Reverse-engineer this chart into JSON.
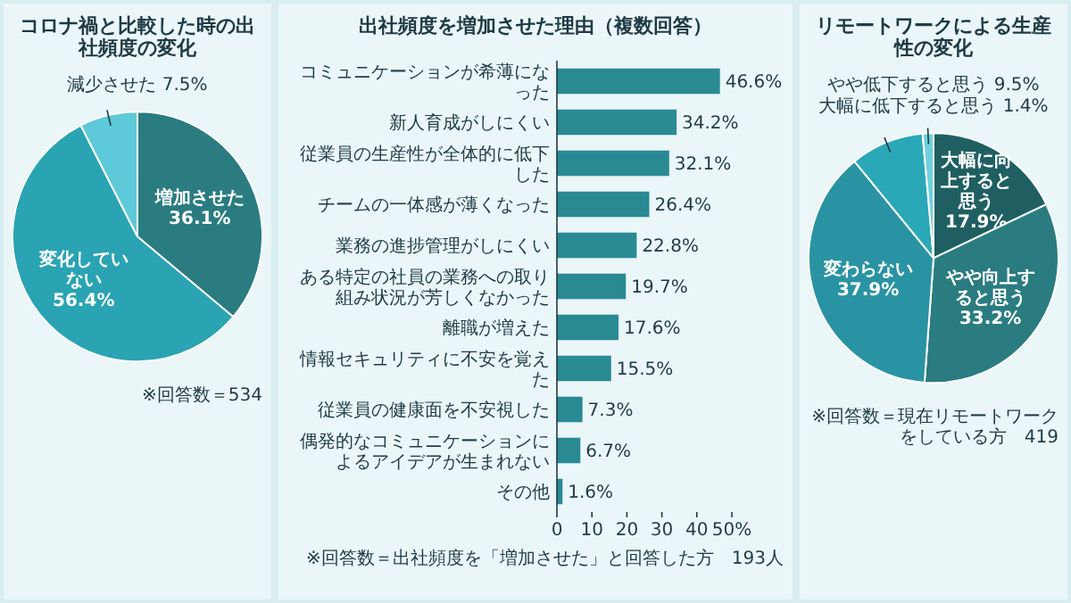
{
  "chart_data": [
    {
      "type": "pie",
      "title": "コロナ禍と比較した時の出社頻度の変化",
      "categories": [
        "増加させた",
        "変化していない",
        "減少させた"
      ],
      "values": [
        36.1,
        56.4,
        7.5
      ],
      "colors": [
        "#2a7c80",
        "#2aa3b3",
        "#5ec9d8"
      ],
      "value_labels": [
        "36.1%",
        "56.4%",
        "7.5%"
      ],
      "annotations": [
        "※回答数＝534"
      ]
    },
    {
      "type": "bar",
      "orientation": "horizontal",
      "title": "出社頻度を増加させた理由（複数回答）",
      "categories": [
        "コミュニケーションが希薄になった",
        "新人育成がしにくい",
        "従業員の生産性が全体的に低下した",
        "チームの一体感が薄くなった",
        "業務の進捗管理がしにくい",
        "ある特定の社員の業務への取り組み状況が芳しくなかった",
        "離職が増えた",
        "情報セキュリティに不安を覚えた",
        "従業員の健康面を不安視した",
        "偶発的なコミュニケーションによるアイデアが生まれない",
        "その他"
      ],
      "values": [
        46.6,
        34.2,
        32.1,
        26.4,
        22.8,
        19.7,
        17.6,
        15.5,
        7.3,
        6.7,
        1.6
      ],
      "color": "#2a8a94",
      "value_labels": [
        "46.6%",
        "34.2%",
        "32.1%",
        "26.4%",
        "22.8%",
        "19.7%",
        "17.6%",
        "15.5%",
        "7.3%",
        "6.7%",
        "1.6%"
      ],
      "xlim": [
        0,
        50
      ],
      "xticks": [
        0,
        10,
        20,
        30,
        40,
        {
          "value": 50,
          "label": "50%"
        }
      ],
      "annotations": [
        "※回答数＝出社頻度を「増加させた」と回答した方　193人"
      ]
    },
    {
      "type": "pie",
      "title": "リモートワークによる生産性の変化",
      "categories": [
        "大幅に向上すると思う",
        "やや向上すると思う",
        "変わらない",
        "やや低下すると思う",
        "大幅に低下すると思う"
      ],
      "values": [
        17.9,
        33.2,
        37.9,
        9.5,
        1.4
      ],
      "colors": [
        "#1f5f62",
        "#2a7c80",
        "#2a93a3",
        "#2aa8b8",
        "#6fd0dc"
      ],
      "value_labels": [
        "17.9%",
        "33.2%",
        "37.9%",
        "9.5%",
        "1.4%"
      ],
      "annotations": [
        "※回答数＝現在リモートワークをしている方　419"
      ]
    }
  ]
}
